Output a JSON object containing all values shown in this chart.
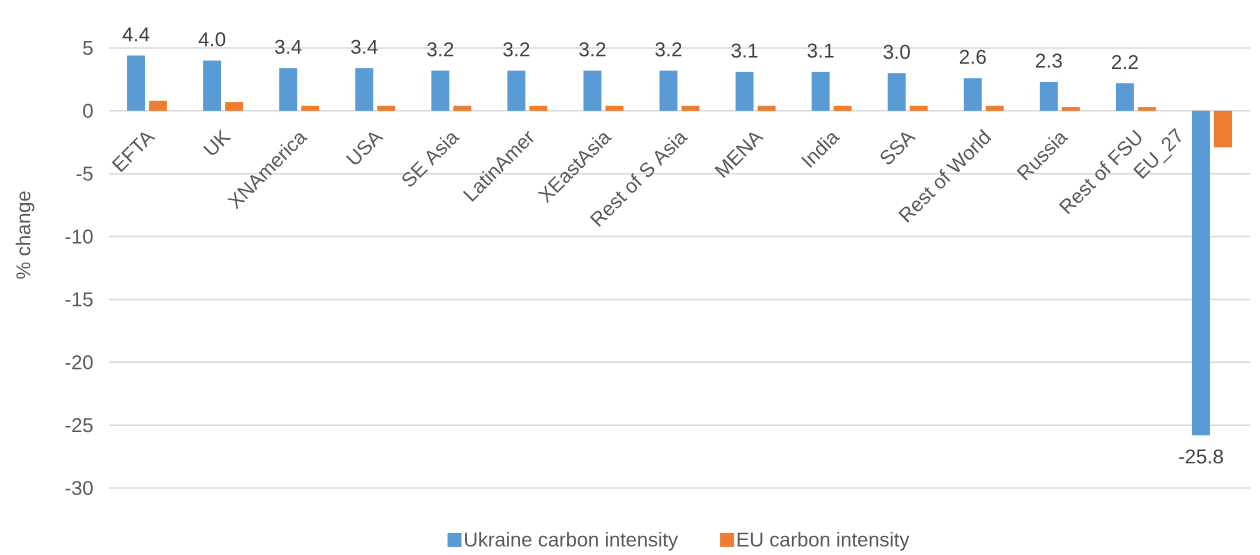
{
  "chart_data": {
    "type": "bar",
    "ylabel": "% change",
    "categories": [
      "EFTA",
      "UK",
      "XNAmerica",
      "USA",
      "SE Asia",
      "LatinAmer",
      "XEastAsia",
      "Rest of S Asia",
      "MENA",
      "India",
      "SSA",
      "Rest of World",
      "Russia",
      "Rest of FSU",
      "EU_27"
    ],
    "series": [
      {
        "name": "Ukraine carbon intensity",
        "color": "#5b9bd5",
        "values": [
          4.4,
          4.0,
          3.4,
          3.4,
          3.2,
          3.2,
          3.2,
          3.2,
          3.1,
          3.1,
          3.0,
          2.6,
          2.3,
          2.2,
          -25.8
        ],
        "value_labels": [
          "4.4",
          "4.0",
          "3.4",
          "3.4",
          "3.2",
          "3.2",
          "3.2",
          "3.2",
          "3.1",
          "3.1",
          "3.0",
          "2.6",
          "2.3",
          "2.2",
          "-25.8"
        ]
      },
      {
        "name": "EU carbon intensity",
        "color": "#ed7d31",
        "values": [
          0.8,
          0.7,
          0.4,
          0.4,
          0.4,
          0.4,
          0.4,
          0.4,
          0.4,
          0.4,
          0.4,
          0.4,
          0.3,
          0.3,
          -2.9
        ]
      }
    ],
    "ylim": [
      -30,
      5
    ],
    "yticks": [
      5,
      0,
      -5,
      -10,
      -15,
      -20,
      -25,
      -30
    ],
    "grid": "y",
    "legend": "bottom"
  }
}
